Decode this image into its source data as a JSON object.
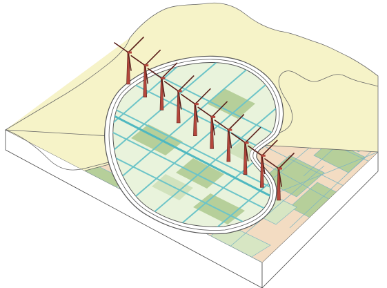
{
  "illustration": {
    "kind": "isometric-landscape",
    "subject": "polder-with-dike-and-wind-turbines",
    "turbine_count": 10,
    "colors": {
      "background": "#ffffff",
      "dune_sand": "#f6f3c8",
      "farmland_beige": "#f3dcc2",
      "farmland_green": "#b6cf9a",
      "farmland_light": "#d7e6c3",
      "polder_fill": "#e9f3dc",
      "polder_ditch": "#6cc4c8",
      "field_line": "#6aa6b8",
      "dike_line": "#555555",
      "turbine_body": "#b5473c",
      "turbine_dark": "#5a1f1a",
      "slab_side": "#ffffff",
      "outline": "#444444"
    }
  }
}
